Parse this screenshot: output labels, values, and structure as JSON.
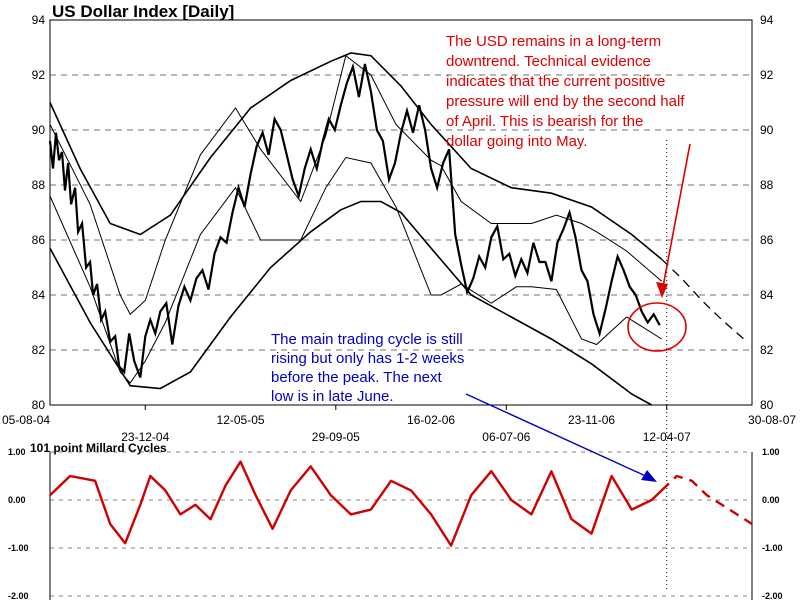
{
  "chart_data": [
    {
      "type": "line",
      "title": "US Dollar Index  [Daily]",
      "ylim": [
        80,
        94
      ],
      "y_ticks": [
        80,
        82,
        84,
        86,
        88,
        90,
        92,
        94
      ],
      "grid": "horizontal dashed",
      "x_tick_labels_row1": [
        "05-08-04",
        "12-05-05",
        "16-02-06",
        "23-11-06",
        "30-08-07"
      ],
      "x_tick_labels_row2": [
        "23-12-04",
        "29-09-05",
        "06-07-06",
        "12-04-07"
      ],
      "series": [
        {
          "style": "price",
          "x": [
            0,
            3,
            6,
            9,
            12,
            15,
            18,
            21,
            25,
            28,
            32,
            36,
            40,
            43,
            47,
            51,
            55,
            60,
            65,
            69,
            74,
            79,
            84,
            90,
            95,
            100,
            105,
            110,
            116,
            122,
            128,
            134,
            140,
            146,
            152,
            158,
            164,
            170,
            176,
            182,
            188,
            194,
            200,
            206,
            212,
            218,
            224,
            230,
            236,
            242,
            248,
            254,
            260,
            266,
            272,
            278,
            284,
            290,
            296,
            302,
            308,
            314,
            320,
            326,
            332,
            338,
            344,
            350,
            356,
            362,
            368,
            374,
            380,
            386,
            392,
            398,
            404,
            410,
            416,
            422,
            428,
            434,
            440,
            446,
            452,
            458,
            464,
            470,
            476,
            482,
            488,
            494,
            500,
            506,
            512,
            518,
            524,
            530,
            536,
            542,
            548,
            554,
            560,
            566,
            572,
            578,
            584,
            590,
            596,
            602,
            608
          ],
          "y": [
            89.6,
            88.6,
            89.9,
            88.9,
            89.2,
            87.8,
            88.8,
            87.3,
            87.9,
            86.3,
            86.6,
            85.0,
            85.2,
            84.0,
            84.4,
            83.1,
            83.4,
            82.3,
            82.5,
            81.4,
            81.2,
            82.6,
            81.6,
            81.0,
            82.5,
            83.1,
            82.6,
            83.4,
            83.7,
            82.2,
            83.6,
            84.3,
            83.8,
            84.6,
            84.9,
            84.2,
            85.5,
            86.1,
            85.9,
            87.0,
            87.9,
            87.2,
            88.4,
            89.4,
            89.9,
            89.1,
            90.4,
            90.0,
            89.1,
            88.2,
            87.6,
            88.6,
            89.3,
            88.6,
            89.6,
            90.4,
            90.0,
            90.9,
            91.7,
            92.3,
            91.2,
            92.4,
            91.4,
            90.0,
            89.6,
            88.2,
            88.8,
            89.9,
            90.7,
            89.9,
            90.9,
            90.0,
            88.6,
            87.9,
            88.8,
            89.3,
            86.2,
            85.1,
            84.1,
            84.6,
            85.4,
            85.0,
            86.1,
            86.5,
            85.3,
            85.5,
            84.7,
            85.3,
            84.8,
            85.9,
            85.2,
            85.2,
            84.5,
            85.9,
            86.4,
            87.0,
            86.1,
            84.9,
            84.5,
            83.3,
            82.6,
            83.5,
            84.5,
            85.4,
            84.9,
            84.3,
            84.0,
            83.4,
            83.0,
            83.3,
            82.9
          ]
        },
        {
          "style": "cycle-upper",
          "x": [
            0,
            40,
            70,
            80,
            95,
            115,
            150,
            185,
            210,
            250,
            275,
            295,
            320,
            345,
            380,
            390,
            410,
            440,
            465,
            480,
            505,
            530,
            545,
            575,
            610
          ],
          "y": [
            90.2,
            87.3,
            84.0,
            83.3,
            83.8,
            86.0,
            89.1,
            90.8,
            89.3,
            87.4,
            89.8,
            92.7,
            92.0,
            90.2,
            88.9,
            88.7,
            87.4,
            86.6,
            86.6,
            86.6,
            86.9,
            86.6,
            86.3,
            85.6,
            84.5
          ]
        },
        {
          "style": "cycle-lower",
          "x": [
            0,
            40,
            70,
            80,
            95,
            115,
            150,
            185,
            210,
            250,
            275,
            295,
            320,
            345,
            380,
            390,
            410,
            440,
            465,
            480,
            505,
            530,
            545,
            575,
            610
          ],
          "y": [
            87.6,
            84.3,
            81.2,
            80.8,
            81.6,
            83.0,
            86.2,
            87.9,
            86.0,
            86.0,
            87.9,
            89.0,
            88.8,
            87.2,
            84.0,
            84.0,
            84.4,
            83.7,
            84.3,
            84.3,
            84.2,
            82.4,
            82.2,
            83.2,
            82.4
          ]
        },
        {
          "style": "envelope-upper",
          "x": [
            0,
            30,
            60,
            90,
            120,
            160,
            200,
            240,
            280,
            300,
            320,
            350,
            380,
            420,
            460,
            500,
            540,
            580,
            610
          ],
          "y": [
            91.0,
            88.6,
            86.6,
            86.2,
            86.9,
            89.0,
            90.8,
            91.8,
            92.5,
            92.8,
            92.7,
            91.6,
            90.2,
            88.6,
            87.9,
            87.7,
            87.2,
            86.2,
            85.3
          ]
        },
        {
          "style": "envelope-upper-forecast",
          "x": [
            610,
            630,
            650,
            670,
            695
          ],
          "y": [
            85.3,
            84.6,
            83.8,
            83.1,
            82.3
          ]
        },
        {
          "style": "envelope-lower",
          "x": [
            0,
            40,
            80,
            110,
            140,
            180,
            220,
            260,
            290,
            310,
            330,
            350,
            380,
            420,
            460,
            500,
            540,
            580,
            600
          ],
          "y": [
            85.7,
            83.0,
            80.7,
            80.6,
            81.2,
            83.2,
            85.0,
            86.3,
            87.1,
            87.4,
            87.4,
            87.0,
            85.7,
            84.0,
            83.2,
            82.4,
            81.5,
            80.4,
            80.0
          ]
        }
      ],
      "annotations": [
        {
          "color": "#e00000",
          "lines": [
            "The USD remains in a long-term",
            "downtrend.  Technical evidence",
            "indicates that the current positive",
            "pressure will end by the second half",
            "of April.  This is bearish for the",
            "dollar going into May."
          ]
        },
        {
          "color": "#0000c8",
          "lines": [
            "The main trading cycle is still",
            "rising but only has 1-2 weeks",
            "before the peak.   The next",
            "low is in late June."
          ]
        }
      ]
    },
    {
      "type": "line",
      "title": "101 point Millard Cycles",
      "ylim": [
        -2.0,
        1.0
      ],
      "y_ticks": [
        1.0,
        0.0,
        -1.0,
        -2.0
      ],
      "y_tick_labels": [
        "1.00",
        "0.00",
        "-1.00",
        "-2.00"
      ],
      "series": [
        {
          "style": "actual",
          "color": "#d00000",
          "x": [
            0,
            20,
            45,
            60,
            75,
            90,
            100,
            115,
            130,
            145,
            160,
            175,
            190,
            205,
            222,
            240,
            260,
            280,
            300,
            320,
            340,
            360,
            380,
            400,
            420,
            440,
            460,
            480,
            500,
            520,
            540,
            560,
            580,
            600,
            610
          ],
          "y": [
            0.1,
            0.5,
            0.4,
            -0.5,
            -0.9,
            -0.1,
            0.5,
            0.2,
            -0.3,
            -0.1,
            -0.4,
            0.3,
            0.8,
            0.1,
            -0.6,
            0.2,
            0.7,
            0.1,
            -0.3,
            -0.2,
            0.4,
            0.2,
            -0.3,
            -0.95,
            0.1,
            0.6,
            0.0,
            -0.3,
            0.6,
            -0.4,
            -0.7,
            0.5,
            -0.2,
            0.0,
            0.2
          ]
        },
        {
          "style": "forecast",
          "color": "#d00000",
          "x": [
            610,
            625,
            640,
            655,
            670,
            685,
            700
          ],
          "y": [
            0.2,
            0.5,
            0.4,
            0.1,
            -0.1,
            -0.3,
            -0.5
          ]
        }
      ]
    }
  ]
}
